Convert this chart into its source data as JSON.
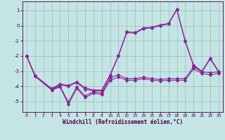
{
  "xlabel": "Windchill (Refroidissement éolien,°C)",
  "bg_color": "#c5e5e5",
  "grid_color": "#99bbbb",
  "line_color": "#882299",
  "xlim": [
    -0.5,
    23.5
  ],
  "ylim": [
    -5.7,
    1.6
  ],
  "xticks": [
    0,
    1,
    2,
    3,
    4,
    5,
    6,
    7,
    8,
    9,
    10,
    11,
    12,
    13,
    14,
    15,
    16,
    17,
    18,
    19,
    20,
    21,
    22,
    23
  ],
  "yticks": [
    1,
    0,
    -1,
    -2,
    -3,
    -4,
    -5
  ],
  "line1_x": [
    0,
    1,
    3,
    4,
    5,
    6,
    7,
    8,
    9,
    10,
    11,
    12,
    13,
    14,
    15,
    16,
    17,
    18,
    19,
    20,
    21,
    22,
    23
  ],
  "line1_y": [
    -2.0,
    -3.3,
    -4.2,
    -3.9,
    -4.0,
    -3.75,
    -4.2,
    -4.3,
    -4.3,
    -3.3,
    -2.0,
    -0.45,
    -0.5,
    -0.2,
    -0.15,
    0.0,
    0.1,
    1.05,
    -1.05,
    -2.65,
    -3.05,
    -2.2,
    -3.05
  ],
  "line2_x": [
    0,
    1,
    3,
    4,
    5,
    6,
    7,
    8,
    9,
    10,
    11,
    12,
    13,
    14,
    15,
    16,
    17,
    18,
    19,
    20,
    21,
    22,
    23
  ],
  "line2_y": [
    -2.0,
    -3.3,
    -4.15,
    -3.85,
    -3.95,
    -3.7,
    -4.1,
    -4.25,
    -4.25,
    -3.25,
    -1.95,
    -0.4,
    -0.45,
    -0.15,
    -0.1,
    0.05,
    0.15,
    1.1,
    -1.0,
    -2.6,
    -3.0,
    -2.15,
    -3.0
  ],
  "line3_x": [
    0,
    1,
    3,
    4,
    5,
    6,
    7,
    8,
    9,
    10,
    11,
    12,
    13,
    14,
    15,
    16,
    17,
    18,
    19,
    20,
    21,
    22,
    23
  ],
  "line3_y": [
    -2.0,
    -3.3,
    -4.2,
    -4.0,
    -5.05,
    -4.05,
    -4.65,
    -4.35,
    -4.45,
    -3.45,
    -3.25,
    -3.5,
    -3.5,
    -3.4,
    -3.5,
    -3.55,
    -3.5,
    -3.5,
    -3.5,
    -2.7,
    -3.05,
    -3.1,
    -3.05
  ],
  "line4_x": [
    0,
    1,
    3,
    4,
    5,
    6,
    7,
    8,
    9,
    10,
    11,
    12,
    13,
    14,
    15,
    16,
    17,
    18,
    19,
    20,
    21,
    22,
    23
  ],
  "line4_y": [
    -2.0,
    -3.35,
    -4.25,
    -4.05,
    -5.2,
    -4.15,
    -4.75,
    -4.45,
    -4.55,
    -3.6,
    -3.4,
    -3.6,
    -3.6,
    -3.5,
    -3.6,
    -3.65,
    -3.6,
    -3.6,
    -3.6,
    -2.85,
    -3.15,
    -3.25,
    -3.15
  ]
}
